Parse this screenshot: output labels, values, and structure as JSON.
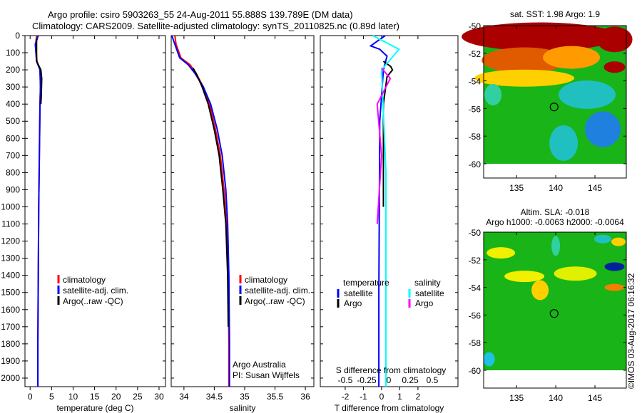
{
  "title_line1": "Argo profile: csiro 5903263_55 24-Aug-2011 55.888S 139.789E (DM data)",
  "title_line2": "Climatology: CARS2009. Satellite-adjusted climatology: synTS_20110825.nc (0.89d later)",
  "credit": "Argo Australia",
  "pi": "PI: Susan Wijffels",
  "watermark": "©IMOS 03-Aug-2017 06:16:32",
  "colors": {
    "climatology": "#ff0000",
    "satellite": "#0000ff",
    "argo": "#000000",
    "sal_satellite": "#00ffff",
    "sal_argo": "#ff00ff"
  },
  "chart_data": [
    {
      "type": "line",
      "name": "temperature-profile",
      "xlabel": "temperature (deg C)",
      "ylabel": "",
      "xlim": [
        -1.2,
        31.5
      ],
      "ylim": [
        2050,
        0
      ],
      "xticks": [
        0,
        5,
        10,
        15,
        20,
        25,
        30
      ],
      "yticks": [
        0,
        100,
        200,
        300,
        400,
        500,
        600,
        700,
        800,
        900,
        1000,
        1100,
        1200,
        1300,
        1400,
        1500,
        1600,
        1700,
        1800,
        1900,
        2000
      ],
      "legend": [
        "climatology",
        "satellite-adj. clim.",
        "Argo(..raw -QC)"
      ],
      "legend_position": "center",
      "series": [
        {
          "name": "climatology",
          "color": "#ff0000",
          "x": [
            1.5,
            1.3,
            1.6,
            2.3,
            2.4,
            2.3,
            2.2,
            2.1,
            2.0,
            1.9,
            1.8,
            1.8
          ],
          "y": [
            0,
            50,
            150,
            200,
            300,
            400,
            600,
            800,
            1000,
            1400,
            1800,
            2050
          ]
        },
        {
          "name": "satellite-adj. clim.",
          "color": "#0000ff",
          "x": [
            1.9,
            1.2,
            1.5,
            2.3,
            2.4,
            2.3,
            2.2,
            2.1,
            2.0,
            1.9,
            1.8,
            1.8
          ],
          "y": [
            0,
            50,
            150,
            200,
            300,
            400,
            600,
            800,
            1000,
            1400,
            1800,
            2050
          ]
        },
        {
          "name": "Argo(..raw -QC)",
          "color": "#000000",
          "x": [
            1.5,
            1.5,
            2.5,
            2.7,
            2.6,
            2.5
          ],
          "y": [
            20,
            150,
            200,
            250,
            350,
            400
          ]
        }
      ]
    },
    {
      "type": "line",
      "name": "salinity-profile",
      "xlabel": "salinity",
      "xlim": [
        33.79,
        36.14
      ],
      "ylim": [
        2050,
        0
      ],
      "xticks": [
        34,
        34.5,
        35,
        35.5,
        36
      ],
      "legend": [
        "climatology",
        "satellite-adj. clim.",
        "Argo(..raw -QC)"
      ],
      "legend_position": "center",
      "series": [
        {
          "name": "climatology",
          "color": "#ff0000",
          "x": [
            33.85,
            33.87,
            33.95,
            34.1,
            34.2,
            34.32,
            34.42,
            34.52,
            34.6,
            34.66,
            34.7,
            34.73,
            34.74,
            34.74
          ],
          "y": [
            0,
            50,
            130,
            170,
            220,
            300,
            400,
            550,
            700,
            900,
            1100,
            1400,
            1800,
            2050
          ]
        },
        {
          "name": "satellite-adj. clim.",
          "color": "#0000ff",
          "x": [
            33.8,
            33.85,
            33.93,
            34.07,
            34.18,
            34.32,
            34.44,
            34.55,
            34.63,
            34.69,
            34.72,
            34.74,
            34.75,
            34.75
          ],
          "y": [
            0,
            50,
            130,
            170,
            220,
            300,
            400,
            550,
            700,
            900,
            1100,
            1400,
            1800,
            2050
          ]
        },
        {
          "name": "Argo(..raw -QC)",
          "color": "#000000",
          "x": [
            34.15,
            34.2,
            34.3,
            34.4,
            34.5,
            34.58,
            34.64,
            34.69,
            34.72,
            34.73
          ],
          "y": [
            190,
            220,
            300,
            400,
            550,
            700,
            900,
            1100,
            1400,
            1700
          ]
        }
      ]
    },
    {
      "type": "line",
      "name": "difference-profile",
      "xlabel": "T difference from climatology",
      "x2label": "S difference from climatology",
      "xlim": [
        -3.37,
        4.2
      ],
      "ylim": [
        2050,
        0
      ],
      "xticks": [
        -2,
        -1,
        0,
        1,
        2
      ],
      "x2ticks": [
        "-0.5",
        "-0.25",
        "0",
        "0.25",
        "0.5"
      ],
      "legend_titles": [
        "temperature",
        "salinity"
      ],
      "legend": [
        "satellite",
        "Argo",
        "satellite",
        "Argo"
      ],
      "series": [
        {
          "name": "T satellite",
          "color": "#0000ff",
          "x": [
            0.2,
            -0.6,
            -0.1,
            0.3,
            0.1,
            -0.1,
            -0.15,
            -0.15
          ],
          "y": [
            0,
            60,
            80,
            120,
            200,
            500,
            1500,
            2050
          ]
        },
        {
          "name": "T Argo",
          "color": "#000000",
          "x": [
            0.1,
            0.5,
            0.6,
            0.3,
            0.1,
            0.1
          ],
          "y": [
            150,
            180,
            200,
            240,
            400,
            1000
          ]
        },
        {
          "name": "S satellite",
          "color": "#00ffff",
          "x": [
            -0.1,
            0.2,
            0.0,
            0.05,
            0.05
          ],
          "y": [
            0,
            80,
            200,
            800,
            2050
          ]
        },
        {
          "name": "S Argo",
          "color": "#ff00ff",
          "x": [
            0.0,
            0.1,
            -0.05,
            0.0,
            -0.05
          ],
          "y": [
            190,
            250,
            400,
            700,
            1100
          ]
        }
      ]
    },
    {
      "type": "heatmap",
      "name": "sst-map",
      "title": "sat. SST: 1.98 Argo: 1.9",
      "xticks": [
        135,
        140,
        145
      ],
      "yticks": [
        -50,
        -52,
        -54,
        -56,
        -58,
        -60
      ],
      "argo_position": [
        139.789,
        -55.888
      ]
    },
    {
      "type": "heatmap",
      "name": "sla-map",
      "title": "Altim. SLA: -0.018",
      "subtitle": "Argo h1000: -0.0063 h2000: -0.0064",
      "xticks": [
        135,
        140,
        145
      ],
      "yticks": [
        -50,
        -52,
        -54,
        -56,
        -58,
        -60
      ],
      "argo_position": [
        139.789,
        -55.888
      ]
    }
  ]
}
